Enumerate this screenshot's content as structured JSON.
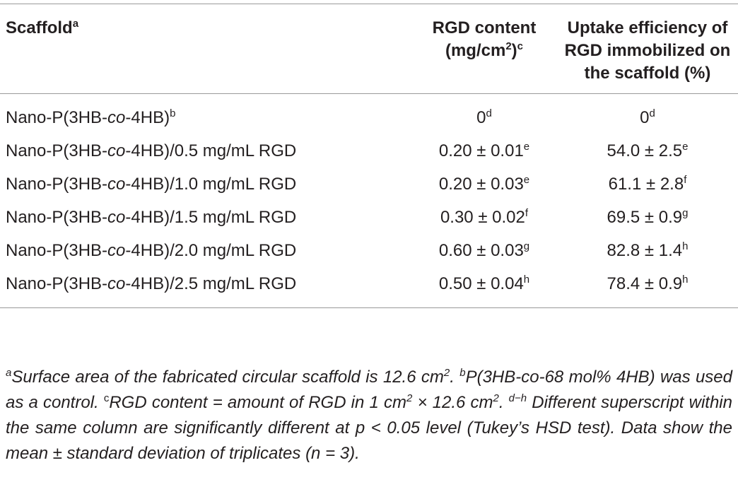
{
  "table": {
    "header": [
      [
        {
          "text": "Scaffold"
        },
        {
          "sup": "a"
        }
      ],
      [
        {
          "text": "RGD content (mg/cm"
        },
        {
          "sup": "2"
        },
        {
          "text": ")"
        },
        {
          "sup": "c"
        }
      ],
      [
        {
          "text": "Uptake efficiency of RGD immobilized on the scaffold (%)"
        }
      ]
    ],
    "rows": [
      [
        [
          {
            "text": "Nano-P(3HB-"
          },
          {
            "italic": "co"
          },
          {
            "text": "-4HB)"
          },
          {
            "sup": "b"
          }
        ],
        [
          {
            "text": "0"
          },
          {
            "sup": "d"
          }
        ],
        [
          {
            "text": "0"
          },
          {
            "sup": "d"
          }
        ]
      ],
      [
        [
          {
            "text": "Nano-P(3HB-"
          },
          {
            "italic": "co"
          },
          {
            "text": "-4HB)/0.5 mg/mL RGD"
          }
        ],
        [
          {
            "text": "0.20 ± 0.01"
          },
          {
            "sup": "e"
          }
        ],
        [
          {
            "text": "54.0 ± 2.5"
          },
          {
            "sup": "e"
          }
        ]
      ],
      [
        [
          {
            "text": "Nano-P(3HB-"
          },
          {
            "italic": "co"
          },
          {
            "text": "-4HB)/1.0 mg/mL RGD"
          }
        ],
        [
          {
            "text": "0.20 ± 0.03"
          },
          {
            "sup": "e"
          }
        ],
        [
          {
            "text": "61.1 ± 2.8"
          },
          {
            "sup": "f"
          }
        ]
      ],
      [
        [
          {
            "text": "Nano-P(3HB-"
          },
          {
            "italic": "co"
          },
          {
            "text": "-4HB)/1.5 mg/mL RGD"
          }
        ],
        [
          {
            "text": "0.30 ± 0.02"
          },
          {
            "sup": "f"
          }
        ],
        [
          {
            "text": "69.5 ± 0.9"
          },
          {
            "sup": "g"
          }
        ]
      ],
      [
        [
          {
            "text": "Nano-P(3HB-"
          },
          {
            "italic": "co"
          },
          {
            "text": "-4HB)/2.0 mg/mL RGD"
          }
        ],
        [
          {
            "text": "0.60 ± 0.03"
          },
          {
            "sup": "g"
          }
        ],
        [
          {
            "text": "82.8 ± 1.4"
          },
          {
            "sup": "h"
          }
        ]
      ],
      [
        [
          {
            "text": "Nano-P(3HB-"
          },
          {
            "italic": "co"
          },
          {
            "text": "-4HB)/2.5 mg/mL RGD"
          }
        ],
        [
          {
            "text": "0.50 ± 0.04"
          },
          {
            "sup": "h"
          }
        ],
        [
          {
            "text": "78.4 ± 0.9"
          },
          {
            "sup": "h"
          }
        ]
      ]
    ],
    "footnote": [
      {
        "sup": "a"
      },
      {
        "text": "Surface area of the fabricated circular scaffold is 12.6 cm"
      },
      {
        "sup": "2"
      },
      {
        "text": ". "
      },
      {
        "sup": "b"
      },
      {
        "text": "P(3HB-co-68 mol% 4HB) was used as a control. "
      },
      {
        "sup": "c"
      },
      {
        "text": "RGD content = amount of RGD in 1 cm"
      },
      {
        "sup": "2"
      },
      {
        "text": " × 12.6 cm"
      },
      {
        "sup": "2"
      },
      {
        "text": ". "
      },
      {
        "sup": "d−h"
      },
      {
        "text": " Different superscript within the same column are significantly different at p < 0.05 level (Tukey’s HSD test). Data show the mean ± standard deviation of triplicates (n = 3)."
      }
    ]
  }
}
